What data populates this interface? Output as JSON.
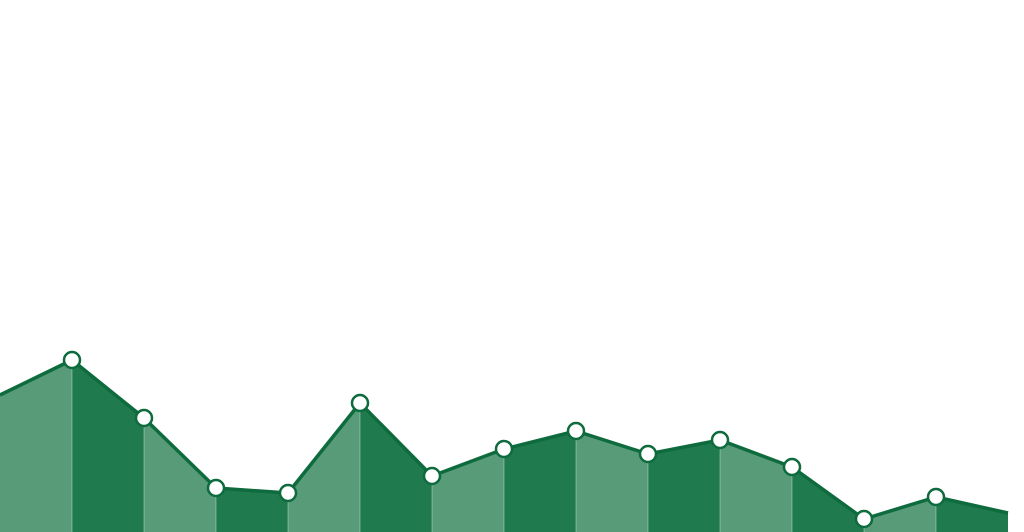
{
  "chart_data": {
    "type": "area",
    "values": [
      137,
      172,
      114,
      44,
      39,
      129,
      56,
      83,
      101,
      78,
      92,
      65,
      13,
      35,
      19
    ],
    "ylim": [
      0,
      532
    ],
    "line_color": "#0e6b3d",
    "light_color": "#579b79",
    "dark_color": "#1f7a4e"
  }
}
